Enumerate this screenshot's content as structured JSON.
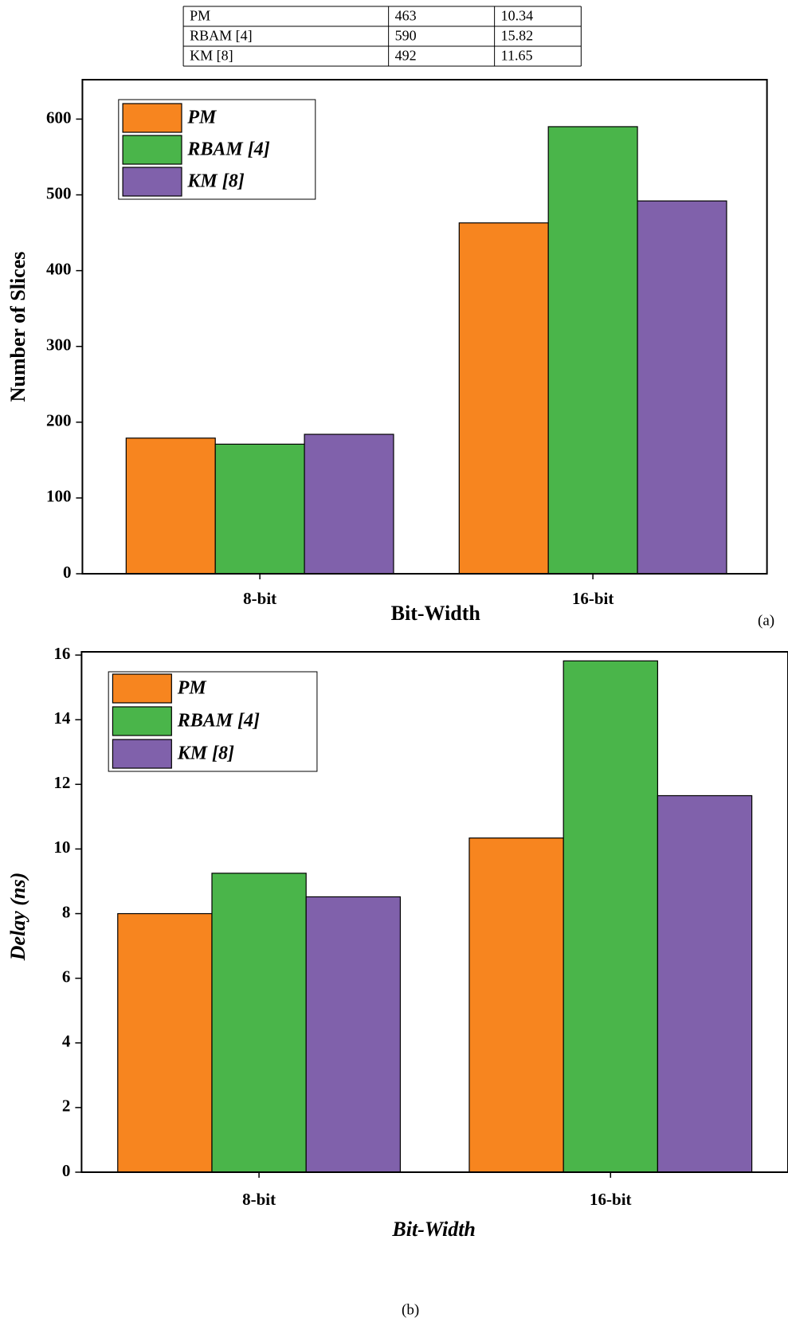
{
  "table": {
    "rows": [
      [
        "PM",
        "463",
        "10.34"
      ],
      [
        "RBAM [4]",
        "590",
        "15.82"
      ],
      [
        "KM [8]",
        "492",
        "11.65"
      ]
    ]
  },
  "chart_data": [
    {
      "type": "bar",
      "x_label": "Bit-Width",
      "y_label": "Number of Slices",
      "caption": "(a)",
      "categories": [
        "8-bit",
        "16-bit"
      ],
      "series": [
        {
          "name": "PM",
          "color": "#f7851f",
          "values": [
            179,
            463
          ]
        },
        {
          "name": "RBAM [4]",
          "color": "#4ab54a",
          "values": [
            171,
            590
          ]
        },
        {
          "name": "KM [8]",
          "color": "#8061ab",
          "values": [
            184,
            492
          ]
        }
      ],
      "ylim": [
        0,
        652
      ],
      "yticks": [
        0,
        100,
        200,
        300,
        400,
        500,
        600
      ],
      "legend": "upper left"
    },
    {
      "type": "bar",
      "x_label": "Bit-Width",
      "y_label": "Delay (ns)",
      "caption": "(b)",
      "categories": [
        "8-bit",
        "16-bit"
      ],
      "series": [
        {
          "name": "PM",
          "color": "#f7851f",
          "values": [
            8.0,
            10.34
          ]
        },
        {
          "name": "RBAM [4]",
          "color": "#4ab54a",
          "values": [
            9.25,
            15.82
          ]
        },
        {
          "name": "KM [8]",
          "color": "#8061ab",
          "values": [
            8.52,
            11.65
          ]
        }
      ],
      "ylim": [
        0,
        16.1
      ],
      "yticks": [
        0,
        2,
        4,
        6,
        8,
        10,
        12,
        14,
        16
      ],
      "legend": "upper left"
    }
  ]
}
